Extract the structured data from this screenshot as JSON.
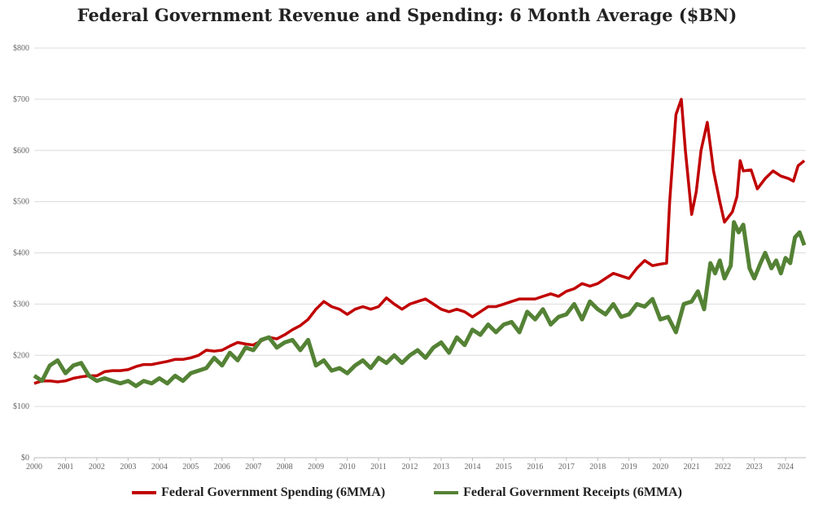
{
  "chart_data": {
    "type": "line",
    "title": "Federal Government Revenue and Spending: 6 Month Average ($BN)",
    "xlabel": "",
    "ylabel": "",
    "xlim": [
      2000,
      2024.6
    ],
    "ylim": [
      0,
      800
    ],
    "x_ticks": [
      "2000",
      "2001",
      "2002",
      "2003",
      "2004",
      "2005",
      "2006",
      "2007",
      "2008",
      "2009",
      "2010",
      "2011",
      "2012",
      "2013",
      "2014",
      "2015",
      "2016",
      "2017",
      "2018",
      "2019",
      "2020",
      "2021",
      "2022",
      "2023",
      "2024"
    ],
    "y_ticks": [
      "$0",
      "$100",
      "$200",
      "$300",
      "$400",
      "$500",
      "$600",
      "$700",
      "$800"
    ],
    "grid": true,
    "legend": "bottom",
    "series": [
      {
        "name": "Federal Government Spending (6MMA)",
        "color": "#c00000",
        "points": [
          [
            2000,
            145
          ],
          [
            2000.25,
            150
          ],
          [
            2000.5,
            150
          ],
          [
            2000.75,
            148
          ],
          [
            2001,
            150
          ],
          [
            2001.25,
            155
          ],
          [
            2001.5,
            158
          ],
          [
            2001.75,
            160
          ],
          [
            2002,
            160
          ],
          [
            2002.25,
            168
          ],
          [
            2002.5,
            170
          ],
          [
            2002.75,
            170
          ],
          [
            2003,
            172
          ],
          [
            2003.25,
            178
          ],
          [
            2003.5,
            182
          ],
          [
            2003.75,
            182
          ],
          [
            2004,
            185
          ],
          [
            2004.25,
            188
          ],
          [
            2004.5,
            192
          ],
          [
            2004.75,
            192
          ],
          [
            2005,
            195
          ],
          [
            2005.25,
            200
          ],
          [
            2005.5,
            210
          ],
          [
            2005.75,
            208
          ],
          [
            2006,
            210
          ],
          [
            2006.25,
            218
          ],
          [
            2006.5,
            225
          ],
          [
            2006.75,
            222
          ],
          [
            2007,
            220
          ],
          [
            2007.25,
            228
          ],
          [
            2007.5,
            235
          ],
          [
            2007.75,
            232
          ],
          [
            2008,
            240
          ],
          [
            2008.25,
            250
          ],
          [
            2008.5,
            258
          ],
          [
            2008.75,
            270
          ],
          [
            2009,
            290
          ],
          [
            2009.25,
            305
          ],
          [
            2009.5,
            295
          ],
          [
            2009.75,
            290
          ],
          [
            2010,
            280
          ],
          [
            2010.25,
            290
          ],
          [
            2010.5,
            295
          ],
          [
            2010.75,
            290
          ],
          [
            2011,
            295
          ],
          [
            2011.25,
            312
          ],
          [
            2011.5,
            300
          ],
          [
            2011.75,
            290
          ],
          [
            2012,
            300
          ],
          [
            2012.25,
            305
          ],
          [
            2012.5,
            310
          ],
          [
            2012.75,
            300
          ],
          [
            2013,
            290
          ],
          [
            2013.25,
            285
          ],
          [
            2013.5,
            290
          ],
          [
            2013.75,
            285
          ],
          [
            2014,
            275
          ],
          [
            2014.25,
            285
          ],
          [
            2014.5,
            295
          ],
          [
            2014.75,
            295
          ],
          [
            2015,
            300
          ],
          [
            2015.25,
            305
          ],
          [
            2015.5,
            310
          ],
          [
            2015.75,
            310
          ],
          [
            2016,
            310
          ],
          [
            2016.25,
            315
          ],
          [
            2016.5,
            320
          ],
          [
            2016.75,
            315
          ],
          [
            2017,
            325
          ],
          [
            2017.25,
            330
          ],
          [
            2017.5,
            340
          ],
          [
            2017.75,
            335
          ],
          [
            2018,
            340
          ],
          [
            2018.25,
            350
          ],
          [
            2018.5,
            360
          ],
          [
            2018.75,
            355
          ],
          [
            2019,
            350
          ],
          [
            2019.25,
            370
          ],
          [
            2019.5,
            385
          ],
          [
            2019.75,
            375
          ],
          [
            2020,
            378
          ],
          [
            2020.2,
            380
          ],
          [
            2020.3,
            500
          ],
          [
            2020.5,
            670
          ],
          [
            2020.67,
            700
          ],
          [
            2020.8,
            600
          ],
          [
            2021,
            475
          ],
          [
            2021.15,
            520
          ],
          [
            2021.3,
            600
          ],
          [
            2021.5,
            655
          ],
          [
            2021.7,
            560
          ],
          [
            2021.9,
            500
          ],
          [
            2022.05,
            460
          ],
          [
            2022.3,
            480
          ],
          [
            2022.45,
            510
          ],
          [
            2022.55,
            580
          ],
          [
            2022.65,
            560
          ],
          [
            2022.9,
            562
          ],
          [
            2023.1,
            525
          ],
          [
            2023.35,
            545
          ],
          [
            2023.6,
            560
          ],
          [
            2023.85,
            550
          ],
          [
            2024.1,
            545
          ],
          [
            2024.25,
            540
          ],
          [
            2024.4,
            570
          ],
          [
            2024.6,
            580
          ]
        ]
      },
      {
        "name": "Federal Government Receipts (6MMA)",
        "color": "#548235",
        "points": [
          [
            2000,
            160
          ],
          [
            2000.25,
            150
          ],
          [
            2000.5,
            180
          ],
          [
            2000.75,
            190
          ],
          [
            2001,
            165
          ],
          [
            2001.25,
            180
          ],
          [
            2001.5,
            185
          ],
          [
            2001.75,
            160
          ],
          [
            2002,
            150
          ],
          [
            2002.25,
            155
          ],
          [
            2002.5,
            150
          ],
          [
            2002.75,
            145
          ],
          [
            2003,
            150
          ],
          [
            2003.25,
            140
          ],
          [
            2003.5,
            150
          ],
          [
            2003.75,
            145
          ],
          [
            2004,
            155
          ],
          [
            2004.25,
            145
          ],
          [
            2004.5,
            160
          ],
          [
            2004.75,
            150
          ],
          [
            2005,
            165
          ],
          [
            2005.25,
            170
          ],
          [
            2005.5,
            175
          ],
          [
            2005.75,
            195
          ],
          [
            2006,
            180
          ],
          [
            2006.25,
            205
          ],
          [
            2006.5,
            190
          ],
          [
            2006.75,
            215
          ],
          [
            2007,
            210
          ],
          [
            2007.25,
            230
          ],
          [
            2007.5,
            235
          ],
          [
            2007.75,
            215
          ],
          [
            2008,
            225
          ],
          [
            2008.25,
            230
          ],
          [
            2008.5,
            210
          ],
          [
            2008.75,
            230
          ],
          [
            2009,
            180
          ],
          [
            2009.25,
            190
          ],
          [
            2009.5,
            170
          ],
          [
            2009.75,
            175
          ],
          [
            2010,
            165
          ],
          [
            2010.25,
            180
          ],
          [
            2010.5,
            190
          ],
          [
            2010.75,
            175
          ],
          [
            2011,
            195
          ],
          [
            2011.25,
            185
          ],
          [
            2011.5,
            200
          ],
          [
            2011.75,
            185
          ],
          [
            2012,
            200
          ],
          [
            2012.25,
            210
          ],
          [
            2012.5,
            195
          ],
          [
            2012.75,
            215
          ],
          [
            2013,
            225
          ],
          [
            2013.25,
            205
          ],
          [
            2013.5,
            235
          ],
          [
            2013.75,
            220
          ],
          [
            2014,
            250
          ],
          [
            2014.25,
            240
          ],
          [
            2014.5,
            260
          ],
          [
            2014.75,
            245
          ],
          [
            2015,
            260
          ],
          [
            2015.25,
            265
          ],
          [
            2015.5,
            245
          ],
          [
            2015.75,
            285
          ],
          [
            2016,
            270
          ],
          [
            2016.25,
            290
          ],
          [
            2016.5,
            260
          ],
          [
            2016.75,
            275
          ],
          [
            2017,
            280
          ],
          [
            2017.25,
            300
          ],
          [
            2017.5,
            270
          ],
          [
            2017.75,
            305
          ],
          [
            2018,
            290
          ],
          [
            2018.25,
            280
          ],
          [
            2018.5,
            300
          ],
          [
            2018.75,
            275
          ],
          [
            2019,
            280
          ],
          [
            2019.25,
            300
          ],
          [
            2019.5,
            295
          ],
          [
            2019.75,
            310
          ],
          [
            2020,
            270
          ],
          [
            2020.25,
            275
          ],
          [
            2020.5,
            245
          ],
          [
            2020.75,
            300
          ],
          [
            2021,
            305
          ],
          [
            2021.2,
            325
          ],
          [
            2021.4,
            290
          ],
          [
            2021.6,
            380
          ],
          [
            2021.75,
            360
          ],
          [
            2021.9,
            385
          ],
          [
            2022.05,
            350
          ],
          [
            2022.25,
            375
          ],
          [
            2022.35,
            460
          ],
          [
            2022.5,
            440
          ],
          [
            2022.65,
            455
          ],
          [
            2022.85,
            370
          ],
          [
            2023,
            350
          ],
          [
            2023.2,
            380
          ],
          [
            2023.35,
            400
          ],
          [
            2023.55,
            370
          ],
          [
            2023.7,
            385
          ],
          [
            2023.85,
            360
          ],
          [
            2024.0,
            390
          ],
          [
            2024.15,
            380
          ],
          [
            2024.3,
            430
          ],
          [
            2024.45,
            440
          ],
          [
            2024.6,
            415
          ]
        ]
      }
    ]
  }
}
